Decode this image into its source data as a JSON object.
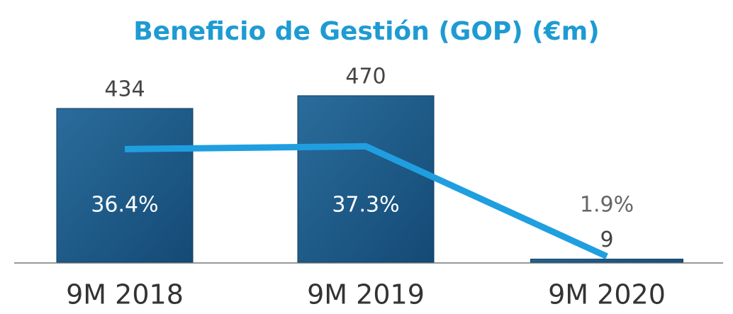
{
  "chart_data": {
    "type": "bar",
    "title": "Beneficio de Gestión (GOP) (€m)",
    "categories": [
      "9M 2018",
      "9M 2019",
      "9M 2020"
    ],
    "series": [
      {
        "type": "bar",
        "color": "#1d5a8a",
        "values": [
          434,
          470,
          9
        ]
      },
      {
        "type": "line",
        "color": "#1f9fe0",
        "axis": "y2",
        "values": [
          36.4,
          37.3,
          1.9
        ],
        "value_labels": [
          "36.4%",
          "37.3%",
          "1.9%"
        ]
      }
    ],
    "ylim": [
      0,
      500
    ],
    "y2lim": [
      0,
      57
    ]
  }
}
